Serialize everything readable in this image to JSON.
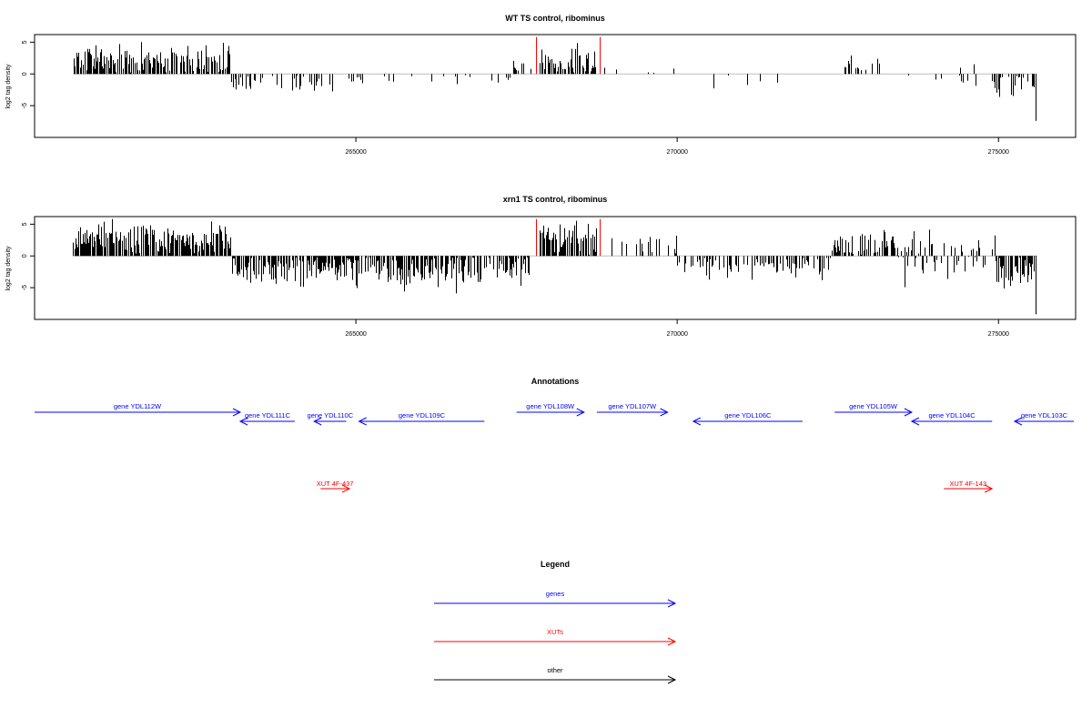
{
  "chart_data": [
    {
      "type": "bar",
      "title": "WT TS control, ribominus",
      "ylabel": "log2 tag density",
      "xlim": [
        260000,
        276200
      ],
      "ylim": [
        -10,
        6.2
      ],
      "x_ticks": [
        265000,
        270000,
        275000
      ],
      "y_ticks": [
        5,
        0,
        -5
      ],
      "seed": 7,
      "spikes": [
        {
          "x": 267800,
          "y": 5.8,
          "color": "#ff0000"
        },
        {
          "x": 268800,
          "y": 5.8,
          "color": "#ff0000"
        }
      ],
      "segments": [
        {
          "from": 260600,
          "to": 263050,
          "mean": 2.2,
          "spread": 1.3,
          "density": 0.9,
          "bins": 150
        },
        {
          "from": 263050,
          "to": 264450,
          "mean": -1.4,
          "spread": 0.9,
          "density": 0.55,
          "bins": 60
        },
        {
          "from": 264450,
          "to": 265350,
          "mean": -1.2,
          "spread": 0.8,
          "density": 0.25,
          "bins": 40
        },
        {
          "from": 265350,
          "to": 266350,
          "mean": -0.8,
          "spread": 0.6,
          "density": 0.12,
          "bins": 40
        },
        {
          "from": 266350,
          "to": 267400,
          "mean": -1.0,
          "spread": 0.7,
          "density": 0.15,
          "bins": 40
        },
        {
          "from": 267400,
          "to": 267750,
          "mean": 1.0,
          "spread": 0.8,
          "density": 0.3,
          "bins": 20
        },
        {
          "from": 267850,
          "to": 268750,
          "mean": 1.9,
          "spread": 1.2,
          "density": 0.7,
          "bins": 60
        },
        {
          "from": 268850,
          "to": 269950,
          "mean": 1.0,
          "spread": 0.8,
          "density": 0.2,
          "bins": 45
        },
        {
          "from": 269950,
          "to": 271700,
          "mean": -1.1,
          "spread": 0.7,
          "density": 0.15,
          "bins": 60
        },
        {
          "from": 272550,
          "to": 273150,
          "mean": 1.2,
          "spread": 0.8,
          "density": 0.25,
          "bins": 30
        },
        {
          "from": 273400,
          "to": 274150,
          "mean": -0.8,
          "spread": 0.6,
          "density": 0.12,
          "bins": 30
        },
        {
          "from": 274150,
          "to": 274800,
          "mean": 0.2,
          "spread": 1.1,
          "density": 0.2,
          "bins": 30
        },
        {
          "from": 274900,
          "to": 275600,
          "mean": -1.8,
          "spread": 1.2,
          "density": 0.6,
          "bins": 40
        }
      ],
      "extremes": [
        {
          "x": 275580,
          "y": -7.4
        }
      ]
    },
    {
      "type": "bar",
      "title": "xrn1 TS control, ribominus",
      "ylabel": "log2 tag density",
      "xlim": [
        260000,
        276200
      ],
      "ylim": [
        -10,
        6.2
      ],
      "x_ticks": [
        265000,
        270000,
        275000
      ],
      "y_ticks": [
        5,
        0,
        -5
      ],
      "seed": 19,
      "spikes": [
        {
          "x": 267800,
          "y": 5.8,
          "color": "#ff0000"
        },
        {
          "x": 268800,
          "y": 5.8,
          "color": "#ff0000"
        }
      ],
      "segments": [
        {
          "from": 260600,
          "to": 263050,
          "mean": 2.8,
          "spread": 1.4,
          "density": 0.95,
          "bins": 160
        },
        {
          "from": 263050,
          "to": 264350,
          "mean": -2.2,
          "spread": 1.3,
          "density": 0.85,
          "bins": 80
        },
        {
          "from": 264350,
          "to": 266000,
          "mean": -2.3,
          "spread": 1.4,
          "density": 0.85,
          "bins": 110
        },
        {
          "from": 266000,
          "to": 267700,
          "mean": -1.9,
          "spread": 1.4,
          "density": 0.75,
          "bins": 100
        },
        {
          "from": 267850,
          "to": 268750,
          "mean": 2.6,
          "spread": 1.3,
          "density": 0.9,
          "bins": 70
        },
        {
          "from": 268900,
          "to": 270000,
          "mean": 1.5,
          "spread": 1.1,
          "density": 0.4,
          "bins": 50
        },
        {
          "from": 270000,
          "to": 272400,
          "mean": -1.5,
          "spread": 1.0,
          "density": 0.7,
          "bins": 110
        },
        {
          "from": 272400,
          "to": 273400,
          "mean": 1.8,
          "spread": 1.1,
          "density": 0.8,
          "bins": 60
        },
        {
          "from": 273400,
          "to": 274950,
          "mean": 0.3,
          "spread": 1.8,
          "density": 0.6,
          "bins": 80
        },
        {
          "from": 274950,
          "to": 275600,
          "mean": -2.2,
          "spread": 1.3,
          "density": 0.8,
          "bins": 40
        }
      ],
      "extremes": [
        {
          "x": 275580,
          "y": -9.2
        },
        {
          "x": 266550,
          "y": -5.9
        }
      ]
    }
  ],
  "annotations": {
    "title": "Annotations",
    "genes_color": "#0000ff",
    "xuts_color": "#ff0000",
    "genes": [
      {
        "label": "gene YDL112W",
        "x1": 260000,
        "x2": 263200,
        "row": 0,
        "strand": "+"
      },
      {
        "label": "gene YDL111C",
        "x1": 263200,
        "x2": 264050,
        "row": 1,
        "strand": "-"
      },
      {
        "label": "gene YDL110C",
        "x1": 264350,
        "x2": 264850,
        "row": 1,
        "strand": "-"
      },
      {
        "label": "gene YDL109C",
        "x1": 265050,
        "x2": 267000,
        "row": 1,
        "strand": "-"
      },
      {
        "label": "gene YDL108W",
        "x1": 267500,
        "x2": 268550,
        "row": 0,
        "strand": "+"
      },
      {
        "label": "gene YDL107W",
        "x1": 268750,
        "x2": 269850,
        "row": 0,
        "strand": "+"
      },
      {
        "label": "gene YDL106C",
        "x1": 270250,
        "x2": 271950,
        "row": 1,
        "strand": "-"
      },
      {
        "label": "gene YDL105W",
        "x1": 272450,
        "x2": 273650,
        "row": 0,
        "strand": "+"
      },
      {
        "label": "gene YDL104C",
        "x1": 273650,
        "x2": 274900,
        "row": 1,
        "strand": "-"
      },
      {
        "label": "gene YDL103C",
        "x1": 275250,
        "x2": 276200,
        "row": 1,
        "strand": "-"
      }
    ],
    "xuts": [
      {
        "label": "XUT 4F-437",
        "x1": 264450,
        "x2": 264900,
        "strand": "+"
      },
      {
        "label": "XUT 4F-143",
        "x1": 274150,
        "x2": 274900,
        "strand": "+"
      }
    ]
  },
  "legend": {
    "title": "Legend",
    "items": [
      {
        "label": "genes",
        "color": "#0000ff"
      },
      {
        "label": "XUTs",
        "color": "#ff0000"
      },
      {
        "label": "other",
        "color": "#000000"
      }
    ]
  }
}
